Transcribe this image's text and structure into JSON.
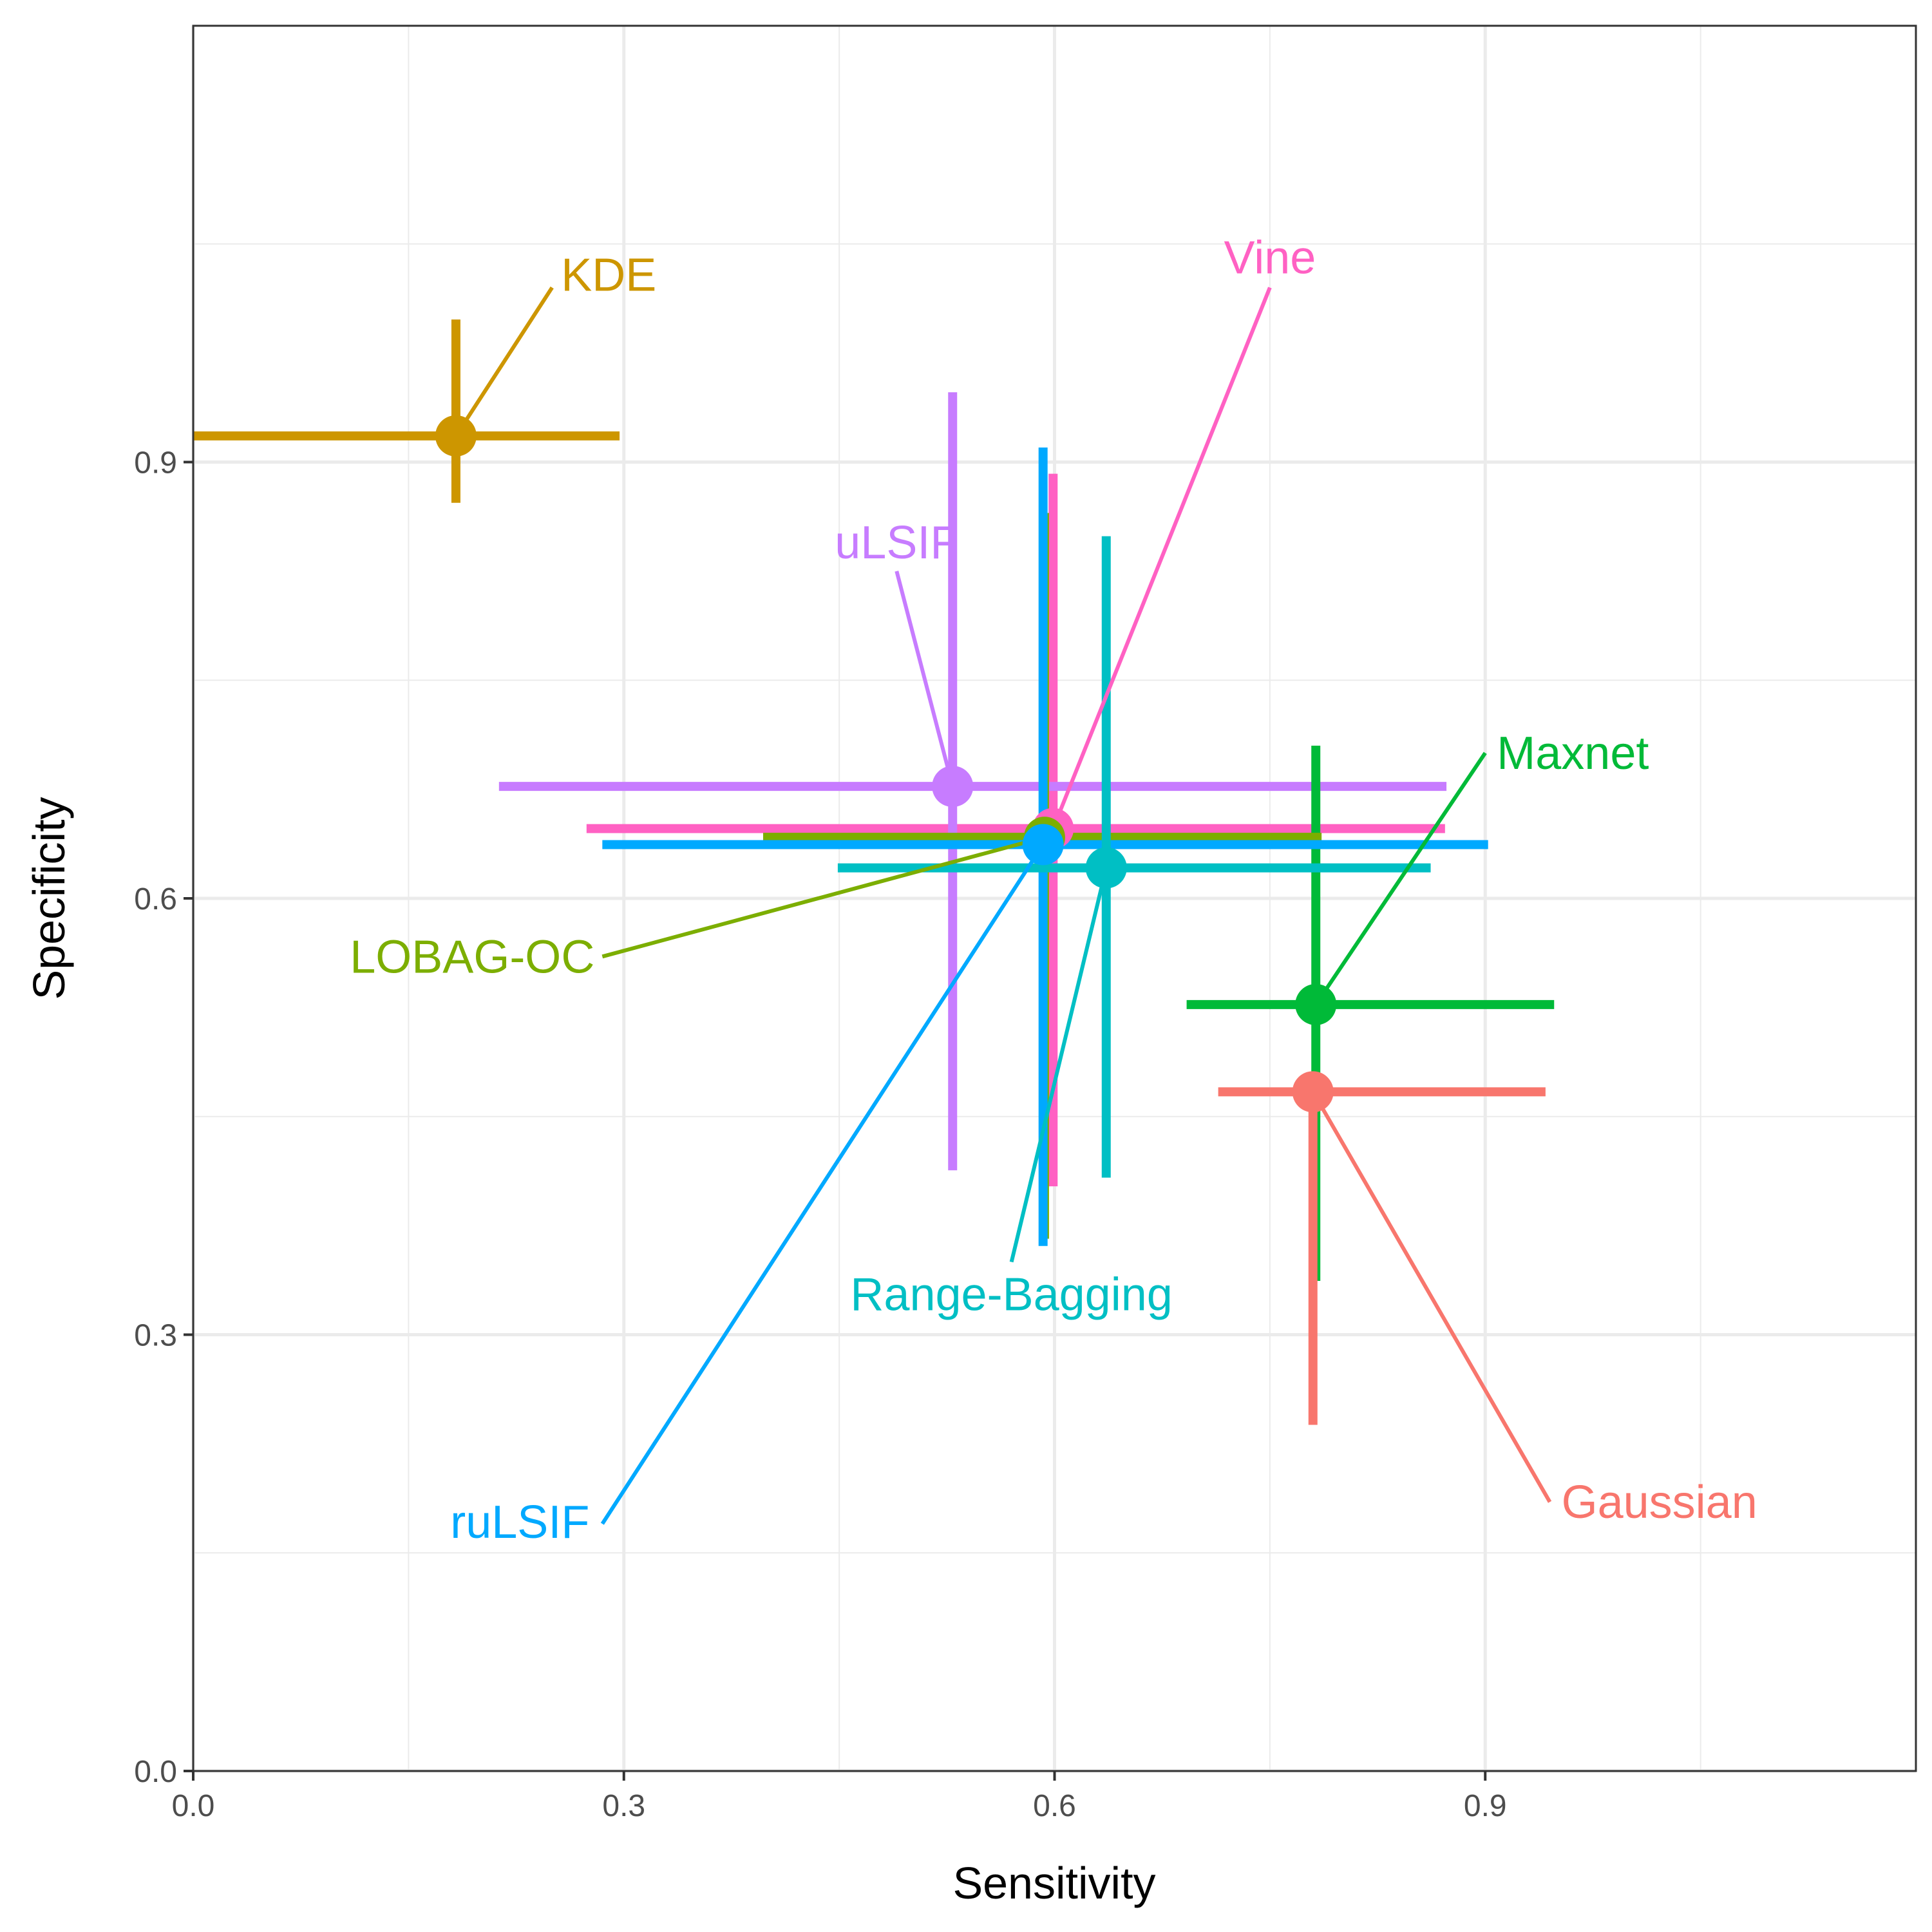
{
  "chart_data": {
    "type": "scatter",
    "xlabel": "Sensitivity",
    "ylabel": "Specificity",
    "xlim": [
      0,
      1.2
    ],
    "ylim": [
      0,
      1.2
    ],
    "x_ticks": [
      0.0,
      0.3,
      0.6,
      0.9
    ],
    "x_tick_labels": [
      "0.0",
      "0.3",
      "0.6",
      "0.9"
    ],
    "y_ticks": [
      0.0,
      0.3,
      0.6,
      0.9
    ],
    "y_tick_labels": [
      "0.0",
      "0.3",
      "0.6",
      "0.9"
    ],
    "grid": true,
    "legend": "none (direct labels)",
    "series": [
      {
        "name": "KDE",
        "color": "#CD9600",
        "x": 0.183,
        "y": 0.918,
        "x_range": [
          0.0,
          0.297
        ],
        "y_range": [
          0.872,
          0.998
        ],
        "label_x": 0.25,
        "label_y": 1.02
      },
      {
        "name": "Vine",
        "color": "#FF61C3",
        "x": 0.599,
        "y": 0.648,
        "x_range": [
          0.274,
          0.872
        ],
        "y_range": [
          0.402,
          0.892
        ],
        "label_x": 0.75,
        "label_y": 1.02
      },
      {
        "name": "uLSIF",
        "color": "#C77CFF",
        "x": 0.529,
        "y": 0.677,
        "x_range": [
          0.213,
          0.873
        ],
        "y_range": [
          0.413,
          0.948
        ],
        "label_x": 0.49,
        "label_y": 0.825
      },
      {
        "name": "Maxnet",
        "color": "#00BA38",
        "x": 0.782,
        "y": 0.527,
        "x_range": [
          0.692,
          0.948
        ],
        "y_range": [
          0.337,
          0.705
        ],
        "label_x": 0.9,
        "label_y": 0.7
      },
      {
        "name": "LOBAG-OC",
        "color": "#7CAE00",
        "x": 0.593,
        "y": 0.642,
        "x_range": [
          0.397,
          0.786
        ],
        "y_range": [
          0.366,
          0.865
        ],
        "label_x": 0.285,
        "label_y": 0.56
      },
      {
        "name": "ruLSIF",
        "color": "#00A9FF",
        "x": 0.592,
        "y": 0.637,
        "x_range": [
          0.285,
          0.902
        ],
        "y_range": [
          0.361,
          0.91
        ],
        "label_x": 0.285,
        "label_y": 0.17
      },
      {
        "name": "Range-Bagging",
        "color": "#00BFC4",
        "x": 0.636,
        "y": 0.621,
        "x_range": [
          0.449,
          0.862
        ],
        "y_range": [
          0.408,
          0.849
        ],
        "label_x": 0.57,
        "label_y": 0.35
      },
      {
        "name": "Gaussian",
        "color": "#F8766D",
        "x": 0.78,
        "y": 0.467,
        "x_range": [
          0.714,
          0.942
        ],
        "y_range": [
          0.238,
          0.467
        ],
        "label_x": 0.945,
        "label_y": 0.185
      }
    ]
  }
}
